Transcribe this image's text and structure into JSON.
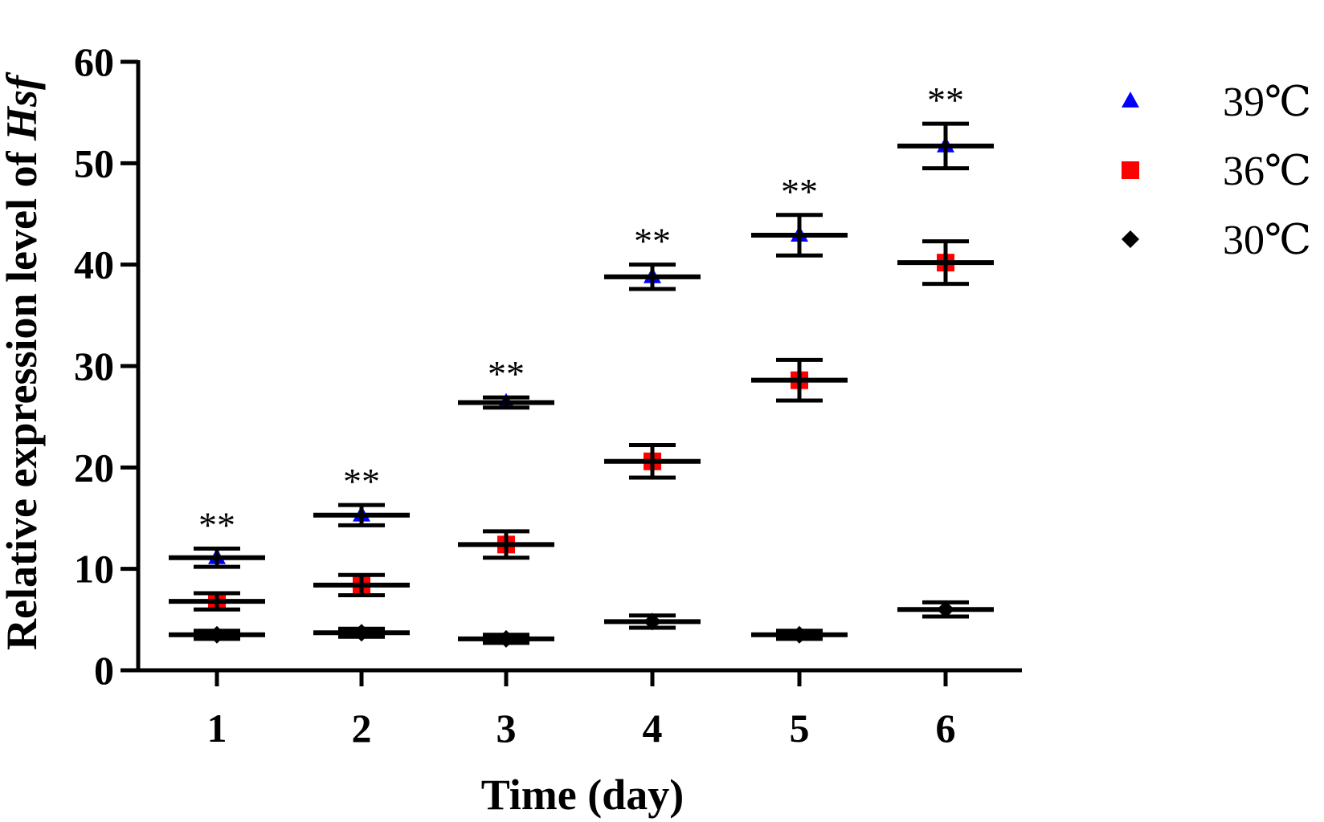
{
  "chart_data": {
    "type": "scatter",
    "xlabel": "Time (day)",
    "ylabel_prefix": "Relative expression level of ",
    "ylabel_italic": "Hsf",
    "x": [
      1,
      2,
      3,
      4,
      5,
      6
    ],
    "x_tick_labels": [
      "1",
      "2",
      "3",
      "4",
      "5",
      "6"
    ],
    "ylim": [
      0,
      60
    ],
    "y_ticks": [
      0,
      10,
      20,
      30,
      40,
      50,
      60
    ],
    "y_tick_labels": [
      "0",
      "10",
      "20",
      "30",
      "40",
      "50",
      "60"
    ],
    "grid": false,
    "legend_position": "top-right",
    "series": [
      {
        "name": "39℃",
        "marker": "triangle",
        "color": "#0000ff",
        "mean": [
          11.1,
          15.3,
          26.4,
          38.8,
          42.9,
          51.7
        ],
        "err": [
          0.9,
          1.0,
          0.5,
          1.2,
          2.0,
          2.2
        ]
      },
      {
        "name": "36℃",
        "marker": "square",
        "color": "#ff0000",
        "mean": [
          6.8,
          8.4,
          12.4,
          20.6,
          28.6,
          40.2
        ],
        "err": [
          0.8,
          1.0,
          1.3,
          1.6,
          2.0,
          2.1
        ]
      },
      {
        "name": "30℃",
        "marker": "diamond",
        "color": "#000000",
        "mean": [
          3.5,
          3.7,
          3.1,
          4.8,
          3.5,
          6.0
        ],
        "err": [
          0.4,
          0.4,
          0.4,
          0.6,
          0.4,
          0.7
        ]
      }
    ],
    "annotations": [
      {
        "x": 1,
        "text": "**"
      },
      {
        "x": 2,
        "text": "**"
      },
      {
        "x": 3,
        "text": "**"
      },
      {
        "x": 4,
        "text": "**"
      },
      {
        "x": 5,
        "text": "**"
      },
      {
        "x": 6,
        "text": "**"
      }
    ]
  }
}
